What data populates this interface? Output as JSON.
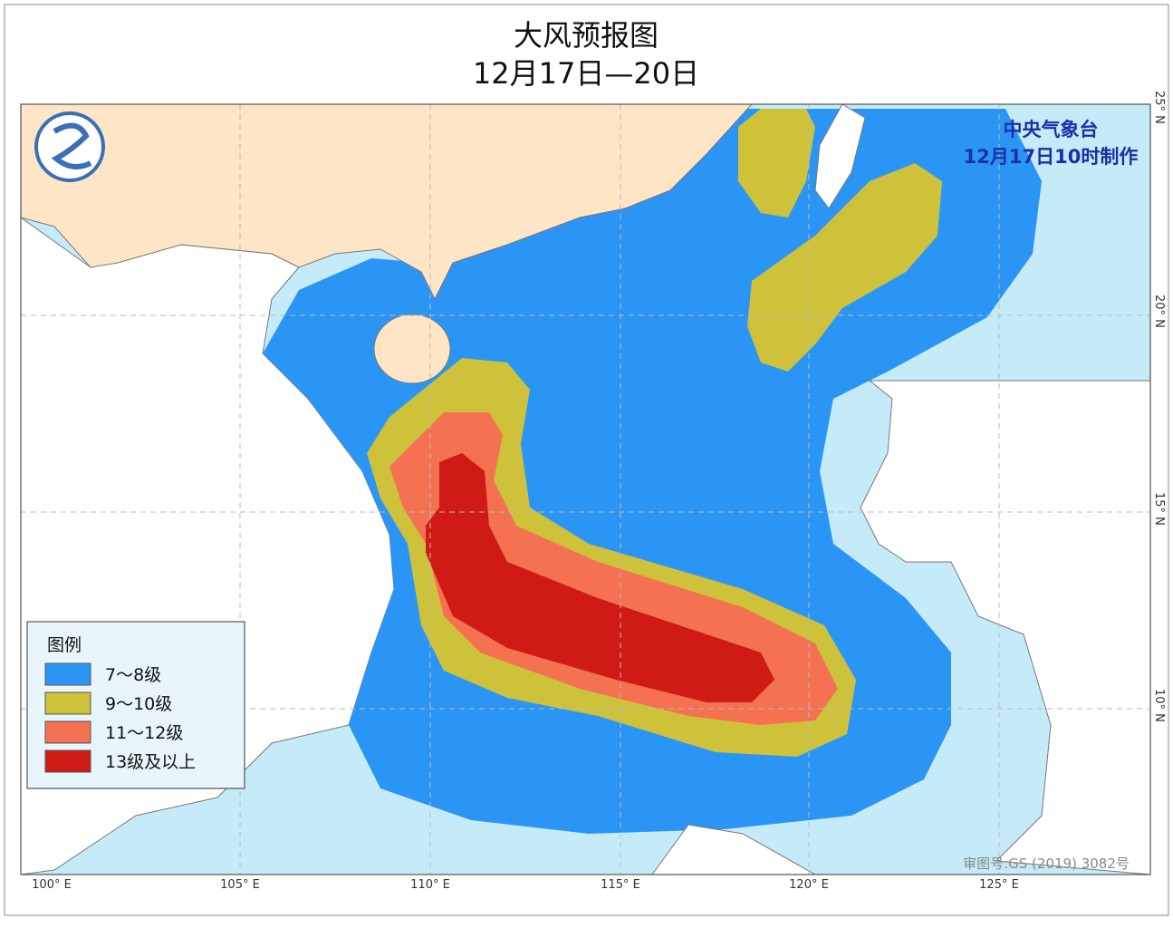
{
  "header": {
    "title": "大风预报图",
    "subtitle": "12月17日—20日"
  },
  "issuer": {
    "name": "中央气象台",
    "time": "12月17日10时制作"
  },
  "legend": {
    "title": "图例",
    "items": [
      {
        "label": "7～8级",
        "color": "#2b95f6"
      },
      {
        "label": "9～10级",
        "color": "#cdc23a"
      },
      {
        "label": "11～12级",
        "color": "#f47152"
      },
      {
        "label": "13级及以上",
        "color": "#d01a14"
      }
    ]
  },
  "map": {
    "longitude_labels": [
      "100° E",
      "105° E",
      "110° E",
      "115° E",
      "120° E",
      "125° E"
    ],
    "latitude_labels": [
      "25° N",
      "20° N",
      "15° N",
      "10° N"
    ],
    "approval": "审图号:GS (2019) 3082号"
  }
}
